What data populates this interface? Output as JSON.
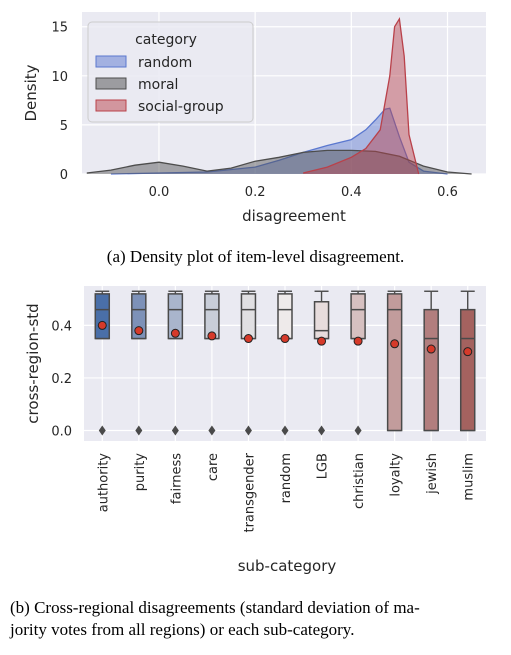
{
  "captions": {
    "a": "(a) Density plot of item-level disagreement.",
    "b_line1": "(b) Cross-regional disagreements (standard deviation of ma-",
    "b_line2": "jority votes from all regions) or each sub-category."
  },
  "chart_data": [
    {
      "type": "area",
      "xlabel": "disagreement",
      "ylabel": "Density",
      "xlim": [
        -0.16,
        0.68
      ],
      "ylim": [
        0,
        16.5
      ],
      "xticks": [
        "0.0",
        "0.2",
        "0.4",
        "0.6"
      ],
      "yticks": [
        "0",
        "5",
        "10",
        "15"
      ],
      "grid": true,
      "legend": {
        "title": "category",
        "placement": "upper-left"
      },
      "series": [
        {
          "name": "random",
          "color": "#5b78cf",
          "x": [
            -0.1,
            0.0,
            0.1,
            0.2,
            0.25,
            0.3,
            0.35,
            0.4,
            0.43,
            0.45,
            0.47,
            0.48,
            0.5,
            0.52,
            0.55,
            0.6
          ],
          "y": [
            0,
            0.1,
            0.2,
            0.7,
            1.4,
            2.2,
            2.9,
            3.5,
            4.5,
            5.5,
            6.6,
            6.7,
            3.8,
            1.2,
            0.3,
            0
          ]
        },
        {
          "name": "moral",
          "color": "#4d4d4d",
          "x": [
            -0.15,
            -0.1,
            -0.05,
            0.0,
            0.05,
            0.1,
            0.15,
            0.2,
            0.25,
            0.3,
            0.35,
            0.4,
            0.45,
            0.5,
            0.55,
            0.6,
            0.65
          ],
          "y": [
            0.1,
            0.4,
            0.9,
            1.2,
            0.8,
            0.3,
            0.6,
            1.3,
            1.7,
            2.2,
            2.4,
            2.4,
            2.3,
            1.8,
            0.8,
            0.2,
            0
          ]
        },
        {
          "name": "social-group",
          "color": "#b9414a",
          "x": [
            0.3,
            0.35,
            0.4,
            0.43,
            0.46,
            0.48,
            0.49,
            0.5,
            0.51,
            0.52,
            0.54
          ],
          "y": [
            0.1,
            0.7,
            1.7,
            2.6,
            4.5,
            10,
            15,
            15.8,
            12,
            4,
            0
          ]
        }
      ]
    },
    {
      "type": "box",
      "xlabel": "sub-category",
      "ylabel": "cross-region-std",
      "ylim": [
        -0.04,
        0.55
      ],
      "yticks": [
        "0.0",
        "0.2",
        "0.4"
      ],
      "grid": true,
      "categories": [
        "authority",
        "purity",
        "fairness",
        "care",
        "transgender",
        "random",
        "LGB",
        "christian",
        "loyalty",
        "jewish",
        "muslim"
      ],
      "colors": [
        "#4a6fa8",
        "#7d91b8",
        "#a9b5cc",
        "#c8cdd8",
        "#e0dfe2",
        "#eeeaea",
        "#e7dcdc",
        "#d6c0c0",
        "#c29c9c",
        "#b27e7e",
        "#a4625f"
      ],
      "q1": [
        0.35,
        0.35,
        0.35,
        0.35,
        0.35,
        0.35,
        0.35,
        0.35,
        0.0,
        0.0,
        0.0
      ],
      "median": [
        0.46,
        0.46,
        0.46,
        0.46,
        0.46,
        0.46,
        0.38,
        0.46,
        0.46,
        0.35,
        0.35
      ],
      "q3": [
        0.52,
        0.52,
        0.52,
        0.52,
        0.52,
        0.52,
        0.49,
        0.52,
        0.52,
        0.46,
        0.46
      ],
      "whisker_low": [
        0.35,
        0.35,
        0.35,
        0.35,
        0.35,
        0.35,
        0.35,
        0.35,
        0.0,
        0.0,
        0.0
      ],
      "whisker_high": [
        0.53,
        0.53,
        0.53,
        0.53,
        0.53,
        0.53,
        0.53,
        0.53,
        0.53,
        0.53,
        0.53
      ],
      "outliers": [
        0.0,
        0.0,
        0.0,
        0.0,
        0.0,
        0.0,
        0.0,
        0.0,
        null,
        null,
        null
      ],
      "mean": [
        0.4,
        0.38,
        0.37,
        0.36,
        0.35,
        0.35,
        0.34,
        0.34,
        0.33,
        0.31,
        0.3
      ]
    }
  ]
}
